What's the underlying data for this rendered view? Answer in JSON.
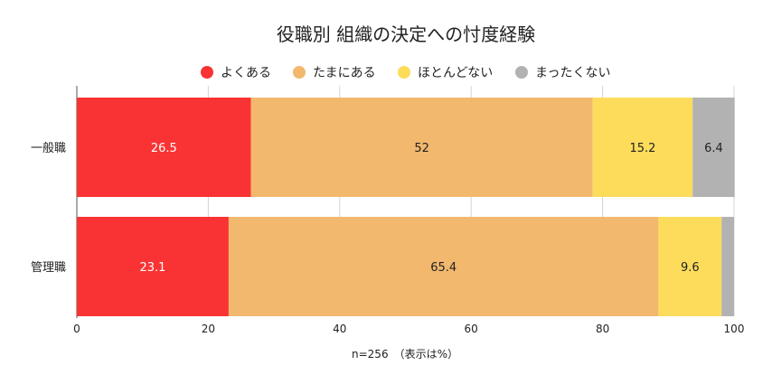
{
  "chart_data": {
    "type": "bar",
    "orientation": "horizontal",
    "stacked": true,
    "title": "役職別 組織の決定への忖度経験",
    "categories": [
      "一般職",
      "管理職"
    ],
    "series": [
      {
        "name": "よくある",
        "values": [
          26.5,
          23.1
        ],
        "color": "#f93333",
        "label_color": "#ffffff"
      },
      {
        "name": "たまにある",
        "values": [
          52,
          65.4
        ],
        "color": "#f2b86e",
        "label_color": "#222222"
      },
      {
        "name": "ほとんどない",
        "values": [
          15.2,
          9.6
        ],
        "color": "#fddc5c",
        "label_color": "#222222"
      },
      {
        "name": "まったくない",
        "values": [
          6.4,
          1.9
        ],
        "color": "#b2b2b2",
        "label_color": "#222222"
      }
    ],
    "data_labels": [
      [
        "26.5",
        "52",
        "15.2",
        "6.4"
      ],
      [
        "23.1",
        "65.4",
        "9.6",
        ""
      ]
    ],
    "xlim": [
      0,
      100
    ],
    "xticks": [
      0,
      20,
      40,
      60,
      80,
      100
    ],
    "grid": true,
    "legend_position": "top",
    "footnote": "n=256　（表示は%）"
  }
}
